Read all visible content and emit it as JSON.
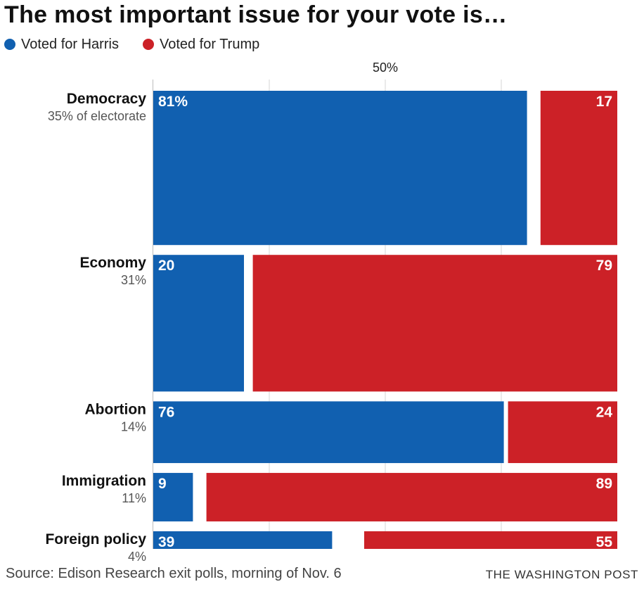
{
  "title": "The most important issue for your vote is…",
  "legend": [
    {
      "label": "Voted for Harris",
      "color": "#1160b0"
    },
    {
      "label": "Voted for Trump",
      "color": "#cc2127"
    }
  ],
  "midline_label": "50%",
  "source": "Source: Edison Research exit polls, morning of Nov. 6",
  "credit": "THE WASHINGTON POST",
  "chart_data": {
    "type": "bar",
    "layout": "stacked-horizontal-marimekko",
    "x_unit": "percent",
    "xlim": [
      0,
      100
    ],
    "gridlines": [
      25,
      50,
      75
    ],
    "categories": [
      {
        "name": "Democracy",
        "share_label": "35% of electorate",
        "electorate_share": 35,
        "harris": 81,
        "trump": 17,
        "harris_label": "81%",
        "trump_label": "17"
      },
      {
        "name": "Economy",
        "share_label": "31%",
        "electorate_share": 31,
        "harris": 20,
        "trump": 79,
        "harris_label": "20",
        "trump_label": "79"
      },
      {
        "name": "Abortion",
        "share_label": "14%",
        "electorate_share": 14,
        "harris": 76,
        "trump": 24,
        "harris_label": "76",
        "trump_label": "24"
      },
      {
        "name": "Immigration",
        "share_label": "11%",
        "electorate_share": 11,
        "harris": 9,
        "trump": 89,
        "harris_label": "9",
        "trump_label": "89"
      },
      {
        "name": "Foreign policy",
        "share_label": "4%",
        "electorate_share": 4,
        "harris": 39,
        "trump": 55,
        "harris_label": "39",
        "trump_label": "55"
      }
    ],
    "series": [
      {
        "name": "Voted for Harris",
        "key": "harris",
        "color": "#1160b0"
      },
      {
        "name": "Voted for Trump",
        "key": "trump",
        "color": "#cc2127"
      }
    ]
  }
}
